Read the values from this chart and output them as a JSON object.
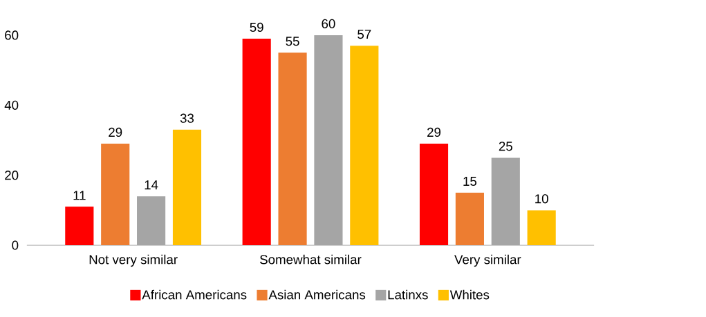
{
  "chart_data": {
    "type": "bar",
    "categories": [
      "Not very similar",
      "Somewhat similar",
      "Very similar"
    ],
    "series": [
      {
        "name": "African Americans",
        "color": "#ff0000",
        "values": [
          11,
          59,
          29
        ]
      },
      {
        "name": "Asian Americans",
        "color": "#ed7d31",
        "values": [
          29,
          55,
          15
        ]
      },
      {
        "name": "Latinxs",
        "color": "#a5a5a5",
        "values": [
          14,
          60,
          25
        ]
      },
      {
        "name": "Whites",
        "color": "#ffc000",
        "values": [
          33,
          57,
          10
        ]
      }
    ],
    "ylim": [
      0,
      60
    ],
    "yticks": [
      0,
      20,
      40,
      60
    ],
    "data_labels": true,
    "legend": "bottom"
  }
}
